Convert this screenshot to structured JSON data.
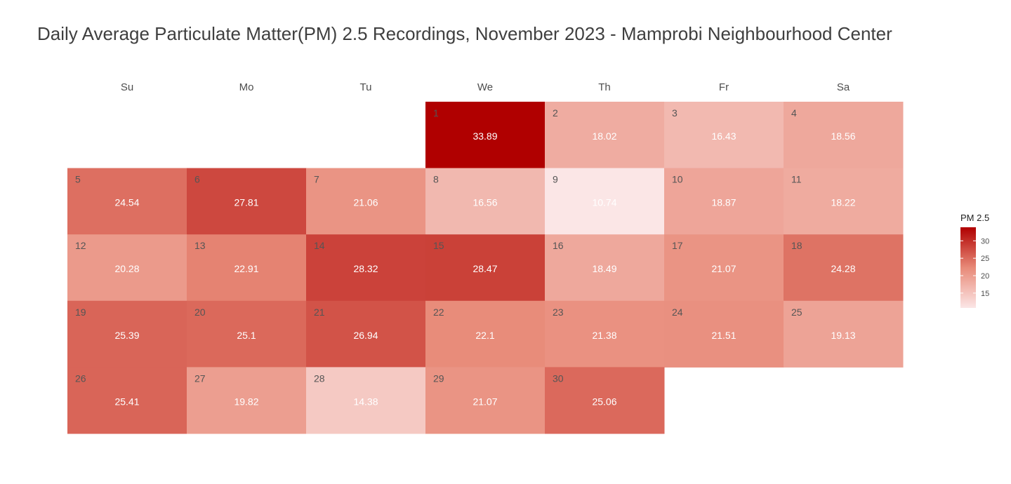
{
  "title": "Daily Average Particulate Matter(PM) 2.5 Recordings, November 2023 - Mamprobi Neighbourhood Center",
  "chart_data": {
    "type": "heatmap",
    "title": "Daily Average Particulate Matter(PM) 2.5 Recordings, November 2023 - Mamprobi Neighbourhood Center",
    "weekdays": [
      "Su",
      "Mo",
      "Tu",
      "We",
      "Th",
      "Fr",
      "Sa"
    ],
    "first_weekday_index": 3,
    "days": [
      {
        "day": "1",
        "value": 33.89,
        "label": "33.89"
      },
      {
        "day": "2",
        "value": 18.02,
        "label": "18.02"
      },
      {
        "day": "3",
        "value": 16.43,
        "label": "16.43"
      },
      {
        "day": "4",
        "value": 18.56,
        "label": "18.56"
      },
      {
        "day": "5",
        "value": 24.54,
        "label": "24.54"
      },
      {
        "day": "6",
        "value": 27.81,
        "label": "27.81"
      },
      {
        "day": "7",
        "value": 21.06,
        "label": "21.06"
      },
      {
        "day": "8",
        "value": 16.56,
        "label": "16.56"
      },
      {
        "day": "9",
        "value": 10.74,
        "label": "10.74"
      },
      {
        "day": "10",
        "value": 18.87,
        "label": "18.87"
      },
      {
        "day": "11",
        "value": 18.22,
        "label": "18.22"
      },
      {
        "day": "12",
        "value": 20.28,
        "label": "20.28"
      },
      {
        "day": "13",
        "value": 22.91,
        "label": "22.91"
      },
      {
        "day": "14",
        "value": 28.32,
        "label": "28.32"
      },
      {
        "day": "15",
        "value": 28.47,
        "label": "28.47"
      },
      {
        "day": "16",
        "value": 18.49,
        "label": "18.49"
      },
      {
        "day": "17",
        "value": 21.07,
        "label": "21.07"
      },
      {
        "day": "18",
        "value": 24.28,
        "label": "24.28"
      },
      {
        "day": "19",
        "value": 25.39,
        "label": "25.39"
      },
      {
        "day": "20",
        "value": 25.1,
        "label": "25.1"
      },
      {
        "day": "21",
        "value": 26.94,
        "label": "26.94"
      },
      {
        "day": "22",
        "value": 22.1,
        "label": "22.1"
      },
      {
        "day": "23",
        "value": 21.38,
        "label": "21.38"
      },
      {
        "day": "24",
        "value": 21.51,
        "label": "21.51"
      },
      {
        "day": "25",
        "value": 19.13,
        "label": "19.13"
      },
      {
        "day": "26",
        "value": 25.41,
        "label": "25.41"
      },
      {
        "day": "27",
        "value": 19.82,
        "label": "19.82"
      },
      {
        "day": "28",
        "value": 14.38,
        "label": "14.38"
      },
      {
        "day": "29",
        "value": 21.07,
        "label": "21.07"
      },
      {
        "day": "30",
        "value": 25.06,
        "label": "25.06"
      }
    ],
    "legend": {
      "title": "PM 2.5",
      "ticks": [
        15,
        20,
        25,
        30
      ],
      "tick_labels": [
        "15",
        "20",
        "25",
        "30"
      ],
      "range": [
        10.74,
        33.89
      ],
      "placement": "right"
    },
    "colors": {
      "low": "#fbe6e6",
      "mid": "#e88a78",
      "high": "#b00000"
    }
  }
}
